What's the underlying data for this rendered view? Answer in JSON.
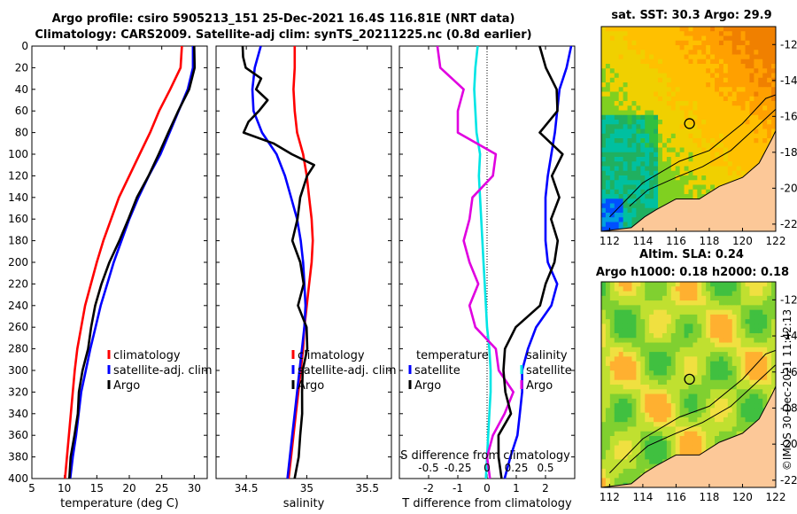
{
  "titles": {
    "line1": "Argo profile: csiro 5905213_151 25-Dec-2021 16.4S 116.81E (NRT data)",
    "line2": "Climatology: CARS2009. Satellite-adj clim: synTS_20211225.nc (0.8d earlier)",
    "sst": "sat. SST: 30.3 Argo: 29.9",
    "sla1": "Altim. SLA: 0.24",
    "sla2": "Argo h1000: 0.18 h2000: 0.18"
  },
  "credit": "©IMOS 30-Dec-2021 11:42:13",
  "colors": {
    "climatology": "#ff0000",
    "satellite": "#0000ff",
    "argo": "#000000",
    "salinity": "#00e5e5",
    "temp_diff": "#e000e0",
    "land": "#fcc898"
  },
  "chart_data": [
    {
      "type": "line",
      "name": "temperature",
      "xlabel": "temperature (deg C)",
      "ylabel": "",
      "xlim": [
        5,
        32
      ],
      "ylim": [
        400,
        0
      ],
      "xticks": [
        5,
        10,
        15,
        20,
        25,
        30
      ],
      "yticks": [
        0,
        20,
        40,
        60,
        80,
        100,
        120,
        140,
        160,
        180,
        200,
        220,
        240,
        260,
        280,
        300,
        320,
        340,
        360,
        380,
        400
      ],
      "legend": {
        "position": "right-middle",
        "entries": [
          "climatology",
          "satellite-adj. clim",
          "Argo"
        ]
      },
      "series": [
        {
          "name": "climatology",
          "color": "#ff0000",
          "depth": [
            0,
            20,
            40,
            60,
            80,
            100,
            120,
            140,
            160,
            180,
            200,
            220,
            240,
            260,
            280,
            300,
            320,
            340,
            360,
            380,
            400
          ],
          "values": [
            28.1,
            27.9,
            26.3,
            24.6,
            23.2,
            21.6,
            20.0,
            18.4,
            17.2,
            16.0,
            15.0,
            14.1,
            13.2,
            12.6,
            12.0,
            11.6,
            11.3,
            11.0,
            10.7,
            10.4,
            10.1
          ]
        },
        {
          "name": "satellite-adj. clim",
          "color": "#0000ff",
          "depth": [
            0,
            20,
            40,
            60,
            80,
            100,
            120,
            140,
            160,
            180,
            200,
            220,
            240,
            260,
            280,
            300,
            320,
            340,
            360,
            380,
            400
          ],
          "values": [
            29.8,
            29.8,
            29.0,
            27.6,
            26.2,
            24.8,
            23.0,
            21.4,
            20.0,
            18.8,
            17.6,
            16.6,
            15.6,
            14.8,
            14.0,
            13.3,
            12.6,
            12.2,
            11.8,
            11.3,
            10.9
          ]
        },
        {
          "name": "Argo",
          "color": "#000000",
          "depth": [
            0,
            20,
            40,
            60,
            80,
            100,
            120,
            140,
            160,
            180,
            200,
            220,
            240,
            260,
            280,
            300,
            320,
            340,
            360,
            380,
            400
          ],
          "values": [
            30.0,
            30.0,
            29.3,
            27.5,
            26.0,
            24.6,
            22.9,
            21.2,
            19.9,
            18.4,
            17.0,
            15.7,
            14.7,
            14.2,
            13.6,
            12.8,
            12.3,
            12.0,
            11.6,
            11.0,
            10.7
          ]
        }
      ]
    },
    {
      "type": "line",
      "name": "salinity",
      "xlabel": "salinity",
      "xlim": [
        34.25,
        35.7
      ],
      "ylim": [
        400,
        0
      ],
      "xticks": [
        34.5,
        35,
        35.5
      ],
      "legend": {
        "position": "right-middle",
        "entries": [
          "climatology",
          "satellite-adj. clim",
          "Argo"
        ]
      },
      "series": [
        {
          "name": "climatology",
          "color": "#ff0000",
          "depth": [
            0,
            20,
            40,
            60,
            80,
            100,
            120,
            140,
            160,
            180,
            200,
            220,
            240,
            260,
            280,
            300,
            320,
            340,
            360,
            380,
            400
          ],
          "values": [
            34.9,
            34.9,
            34.89,
            34.9,
            34.92,
            34.97,
            35.0,
            35.02,
            35.04,
            35.05,
            35.04,
            35.02,
            35.0,
            34.98,
            34.97,
            34.95,
            34.93,
            34.91,
            34.89,
            34.87,
            34.85
          ]
        },
        {
          "name": "satellite-adj. clim",
          "color": "#0000ff",
          "depth": [
            0,
            20,
            40,
            60,
            80,
            100,
            120,
            140,
            160,
            180,
            200,
            220,
            240,
            260,
            280,
            300,
            320,
            340,
            360,
            380,
            400
          ],
          "values": [
            34.62,
            34.57,
            34.55,
            34.56,
            34.63,
            34.75,
            34.82,
            34.87,
            34.92,
            34.95,
            34.97,
            34.98,
            34.99,
            34.98,
            34.96,
            34.94,
            34.92,
            34.9,
            34.88,
            34.86,
            34.84
          ]
        },
        {
          "name": "Argo",
          "color": "#000000",
          "depth": [
            0,
            10,
            20,
            30,
            40,
            50,
            60,
            70,
            80,
            90,
            100,
            110,
            120,
            140,
            160,
            180,
            200,
            220,
            240,
            260,
            280,
            300,
            320,
            340,
            360,
            380,
            400
          ],
          "values": [
            34.47,
            34.47,
            34.5,
            34.62,
            34.58,
            34.68,
            34.6,
            34.52,
            34.48,
            34.72,
            34.88,
            35.06,
            35.0,
            34.95,
            34.92,
            34.88,
            34.95,
            34.97,
            34.93,
            35.0,
            35.0,
            34.97,
            34.96,
            34.96,
            34.95,
            34.93,
            34.9
          ]
        }
      ]
    },
    {
      "type": "line",
      "name": "difference",
      "xlabel": "T difference from climatology",
      "xlabel2": "S difference from climatology",
      "xlim": [
        -3,
        3
      ],
      "xlim2": [
        -0.75,
        0.75
      ],
      "ylim": [
        400,
        0
      ],
      "xticks": [
        -2,
        -1,
        0,
        1,
        2
      ],
      "xticks2": [
        -0.5,
        -0.25,
        0,
        0.25,
        0.5
      ],
      "legend": {
        "temperature_title": "temperature",
        "salinity_title": "salinity",
        "entries": [
          "satellite",
          "Argo"
        ]
      },
      "series": [
        {
          "name": "T satellite",
          "color": "#e000e0",
          "depth": [
            0,
            20,
            40,
            60,
            80,
            100,
            120,
            140,
            160,
            180,
            200,
            220,
            240,
            260,
            280,
            300,
            320,
            340,
            360,
            380,
            400
          ],
          "values": [
            -1.7,
            -1.6,
            -0.8,
            -1.0,
            -1.0,
            0.3,
            0.2,
            -0.5,
            -0.6,
            -0.8,
            -0.6,
            -0.3,
            -0.6,
            -0.4,
            0.3,
            0.4,
            0.9,
            0.6,
            0.2,
            0.0,
            0.1
          ]
        },
        {
          "name": "S satellite",
          "color": "#00e5e5",
          "depth": [
            0,
            20,
            40,
            60,
            80,
            100,
            120,
            140,
            160,
            180,
            200,
            220,
            240,
            260,
            280,
            300,
            320,
            340,
            360,
            380,
            400
          ],
          "values": [
            -0.08,
            -0.1,
            -0.11,
            -0.1,
            -0.09,
            -0.06,
            -0.07,
            -0.06,
            -0.05,
            -0.04,
            -0.03,
            -0.02,
            -0.01,
            0.0,
            0.02,
            0.03,
            0.03,
            0.02,
            0.01,
            0.0,
            -0.01
          ]
        },
        {
          "name": "S Argo",
          "color": "#000000",
          "depth": [
            0,
            20,
            40,
            60,
            80,
            100,
            120,
            140,
            160,
            180,
            200,
            220,
            240,
            260,
            280,
            300,
            320,
            340,
            360,
            380,
            400
          ],
          "values": [
            0.45,
            0.5,
            0.6,
            0.6,
            0.45,
            0.65,
            0.55,
            0.62,
            0.55,
            0.6,
            0.58,
            0.5,
            0.45,
            0.25,
            0.15,
            0.14,
            0.16,
            0.2,
            0.1,
            0.1,
            0.12
          ]
        },
        {
          "name": "S satellite-blue",
          "color": "#0000ff",
          "depth": [
            0,
            20,
            40,
            60,
            80,
            100,
            120,
            140,
            160,
            180,
            200,
            220,
            240,
            260,
            280,
            300,
            320,
            340,
            360,
            380,
            400
          ],
          "values": [
            0.72,
            0.68,
            0.62,
            0.6,
            0.58,
            0.55,
            0.52,
            0.5,
            0.5,
            0.5,
            0.52,
            0.6,
            0.55,
            0.42,
            0.35,
            0.3,
            0.3,
            0.28,
            0.26,
            0.2,
            0.15
          ]
        }
      ]
    },
    {
      "type": "heatmap",
      "name": "sst-map",
      "xlim": [
        111.5,
        122
      ],
      "ylim": [
        -22.4,
        -11
      ],
      "xticks": [
        112,
        114,
        116,
        118,
        120,
        122
      ],
      "yticks": [
        -12,
        -14,
        -16,
        -18,
        -20,
        -22
      ],
      "marker": {
        "lon": 116.81,
        "lat": -16.4
      }
    },
    {
      "type": "heatmap",
      "name": "sla-map",
      "xlim": [
        111.5,
        122
      ],
      "ylim": [
        -22.4,
        -11
      ],
      "xticks": [
        112,
        114,
        116,
        118,
        120,
        122
      ],
      "yticks": [
        -12,
        -14,
        -16,
        -18,
        -20,
        -22
      ],
      "marker": {
        "lon": 116.81,
        "lat": -16.4
      }
    }
  ]
}
